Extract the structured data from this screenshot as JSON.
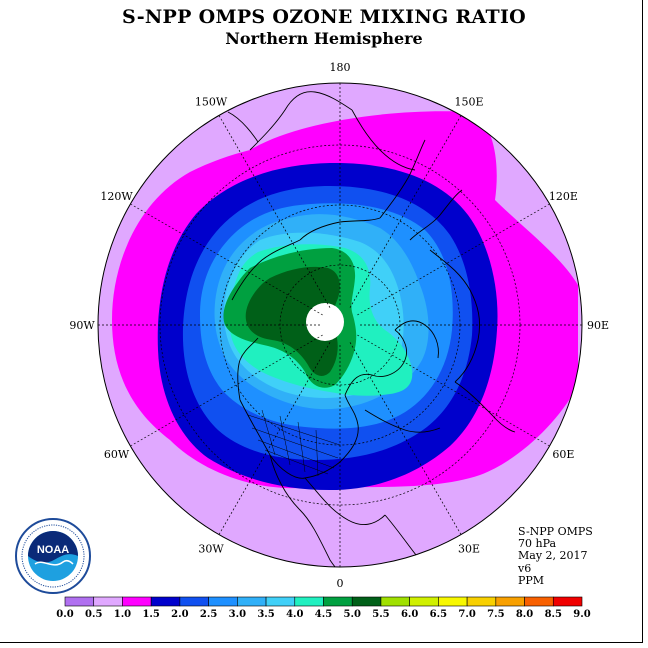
{
  "title": "S-NPP OMPS OZONE MIXING RATIO",
  "subtitle": "Northern Hemisphere",
  "info": {
    "instrument": "S-NPP OMPS",
    "level": "70 hPa",
    "date": "May 2, 2017",
    "version": "v6",
    "units": "PPM"
  },
  "longitude_labels": [
    {
      "text": "90E",
      "deg": 90
    },
    {
      "text": "60E",
      "deg": 60
    },
    {
      "text": "120E",
      "deg": 120
    },
    {
      "text": "30E",
      "deg": 30
    },
    {
      "text": "150E",
      "deg": 150
    },
    {
      "text": "180",
      "deg": 180
    },
    {
      "text": "0",
      "deg": 0
    },
    {
      "text": "150W",
      "deg": -150
    },
    {
      "text": "30W",
      "deg": -30
    },
    {
      "text": "120W",
      "deg": -120
    },
    {
      "text": "60W",
      "deg": -60
    },
    {
      "text": "90W",
      "deg": -90
    }
  ],
  "colorbar": {
    "ticks": [
      "0.0",
      "0.5",
      "1.0",
      "1.5",
      "2.0",
      "2.5",
      "3.0",
      "3.5",
      "4.0",
      "4.5",
      "5.0",
      "5.5",
      "6.0",
      "6.5",
      "7.0",
      "7.5",
      "8.0",
      "8.5",
      "9.0"
    ],
    "colors": [
      "#b070f0",
      "#e0a8ff",
      "#ff00ff",
      "#0000cc",
      "#1050f0",
      "#1e90ff",
      "#30b0f8",
      "#40d0f8",
      "#20f0c0",
      "#00a040",
      "#006018",
      "#a0e000",
      "#d0f000",
      "#f8f800",
      "#f8d000",
      "#f8a000",
      "#f86000",
      "#f00000",
      "#8b5a3c"
    ]
  },
  "logo": {
    "text": "NOAA",
    "ring_text": "NATIONAL OCEANIC AND ATMOSPHERIC ADMINISTRATION · U.S. DEPARTMENT OF COMMERCE"
  },
  "map_colors": {
    "outer": "#e0a8ff",
    "magenta": "#ff00ff",
    "dark_blue": "#0000cc",
    "blue": "#1050f0",
    "mid_blue": "#1e90ff",
    "light_blue": "#30b0f8",
    "cyan": "#40d0f8",
    "aqua": "#20f0c0",
    "green": "#00a040",
    "dark_green": "#006018",
    "pole": "#ffffff"
  }
}
